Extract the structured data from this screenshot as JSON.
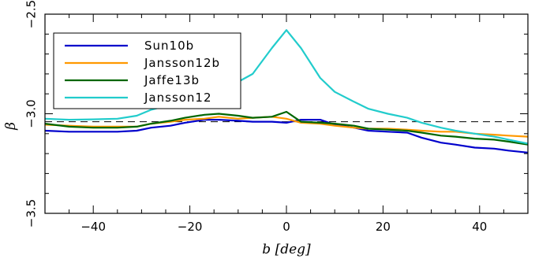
{
  "chart_data": {
    "type": "line",
    "title": "",
    "xlabel": "b [deg]",
    "ylabel": "β",
    "xlim": [
      -50,
      50
    ],
    "ylim": [
      -3.5,
      -2.5
    ],
    "xticks": [
      -40,
      -20,
      0,
      20,
      40
    ],
    "yticks": [
      -3.5,
      -3.0,
      -2.5
    ],
    "ytick_labels": [
      "−3.5",
      "−3.0",
      "−2.5"
    ],
    "legend_position": "top-left",
    "grid": false,
    "reference_line": {
      "y": -3.04,
      "style": "dashed",
      "color": "#000000"
    },
    "series": [
      {
        "name": "Sun10b",
        "color": "#0000cc",
        "x": [
          -50,
          -45,
          -40,
          -35,
          -31,
          -28,
          -24,
          -21,
          -17,
          -14,
          -10,
          -7,
          -3,
          0,
          3,
          7,
          10,
          14,
          17,
          21,
          25,
          28,
          32,
          35,
          39,
          43,
          46,
          50
        ],
        "y": [
          -3.085,
          -3.09,
          -3.09,
          -3.09,
          -3.085,
          -3.07,
          -3.06,
          -3.045,
          -3.03,
          -3.03,
          -3.035,
          -3.04,
          -3.04,
          -3.045,
          -3.03,
          -3.03,
          -3.055,
          -3.07,
          -3.085,
          -3.09,
          -3.095,
          -3.12,
          -3.145,
          -3.155,
          -3.17,
          -3.175,
          -3.185,
          -3.195
        ]
      },
      {
        "name": "Jansson12b",
        "color": "#ff9900",
        "x": [
          -50,
          -45,
          -40,
          -35,
          -31,
          -28,
          -24,
          -21,
          -17,
          -14,
          -10,
          -7,
          -3,
          0,
          3,
          7,
          10,
          14,
          17,
          21,
          25,
          28,
          32,
          35,
          39,
          43,
          46,
          50
        ],
        "y": [
          -3.055,
          -3.06,
          -3.065,
          -3.065,
          -3.065,
          -3.05,
          -3.04,
          -3.03,
          -3.025,
          -3.015,
          -3.025,
          -3.02,
          -3.015,
          -3.025,
          -3.045,
          -3.05,
          -3.06,
          -3.07,
          -3.075,
          -3.075,
          -3.08,
          -3.085,
          -3.09,
          -3.09,
          -3.1,
          -3.105,
          -3.11,
          -3.115
        ]
      },
      {
        "name": "Jaffe13b",
        "color": "#006600",
        "x": [
          -50,
          -45,
          -40,
          -35,
          -31,
          -28,
          -24,
          -21,
          -17,
          -14,
          -10,
          -7,
          -3,
          0,
          3,
          7,
          10,
          14,
          17,
          21,
          25,
          28,
          32,
          35,
          39,
          43,
          46,
          50
        ],
        "y": [
          -3.05,
          -3.065,
          -3.07,
          -3.07,
          -3.065,
          -3.05,
          -3.035,
          -3.02,
          -3.005,
          -3.0,
          -3.01,
          -3.02,
          -3.015,
          -2.99,
          -3.04,
          -3.045,
          -3.05,
          -3.06,
          -3.075,
          -3.08,
          -3.085,
          -3.095,
          -3.11,
          -3.115,
          -3.125,
          -3.13,
          -3.14,
          -3.155
        ]
      },
      {
        "name": "Jansson12",
        "color": "#22cccc",
        "x": [
          -50,
          -45,
          -40,
          -35,
          -31,
          -28,
          -24,
          -21,
          -17,
          -14,
          -10,
          -7,
          -3,
          0,
          3,
          7,
          10,
          14,
          17,
          21,
          25,
          28,
          32,
          35,
          39,
          43,
          46,
          50
        ],
        "y": [
          -3.025,
          -3.03,
          -3.028,
          -3.025,
          -3.01,
          -2.98,
          -2.955,
          -2.93,
          -2.905,
          -2.885,
          -2.84,
          -2.8,
          -2.67,
          -2.58,
          -2.67,
          -2.82,
          -2.89,
          -2.94,
          -2.975,
          -3.0,
          -3.02,
          -3.045,
          -3.07,
          -3.085,
          -3.1,
          -3.115,
          -3.13,
          -3.15
        ]
      }
    ]
  }
}
